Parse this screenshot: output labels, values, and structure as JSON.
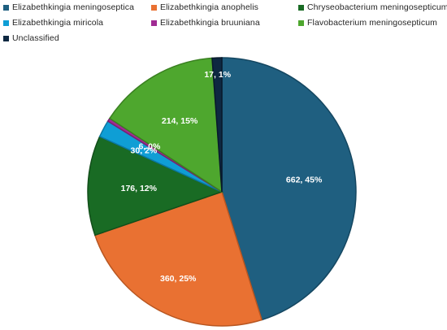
{
  "chart_data": {
    "type": "pie",
    "title": "",
    "legend_position": "top",
    "slices": [
      {
        "name": "Elizabethkingia meningoseptica",
        "value": 662,
        "percent": "45%",
        "label": "662, 45%",
        "color": "#1f5f80",
        "border": "#154761"
      },
      {
        "name": "Elizabethkingia anophelis",
        "value": 360,
        "percent": "25%",
        "label": "360, 25%",
        "color": "#e97132",
        "border": "#b85621"
      },
      {
        "name": "Chryseobacterium meningosepticum",
        "value": 176,
        "percent": "12%",
        "label": "176, 12%",
        "color": "#196b24",
        "border": "#124e1a"
      },
      {
        "name": "Elizabethkingia miricola",
        "value": 30,
        "percent": "2%",
        "label": "30, 2%",
        "color": "#0f9ed5",
        "border": "#0b78a3"
      },
      {
        "name": "Elizabethkingia bruuniana",
        "value": 6,
        "percent": "0%",
        "label": "6, 0%",
        "color": "#a02b93",
        "border": "#7a2070"
      },
      {
        "name": "Flavobacterium meningosepticum",
        "value": 214,
        "percent": "15%",
        "label": "214, 15%",
        "color": "#4ea72e",
        "border": "#3a8021"
      },
      {
        "name": "Unclassified",
        "value": 17,
        "percent": "1%",
        "label": "17, 1%",
        "color": "#0e2841",
        "border": "#08192b"
      }
    ]
  }
}
